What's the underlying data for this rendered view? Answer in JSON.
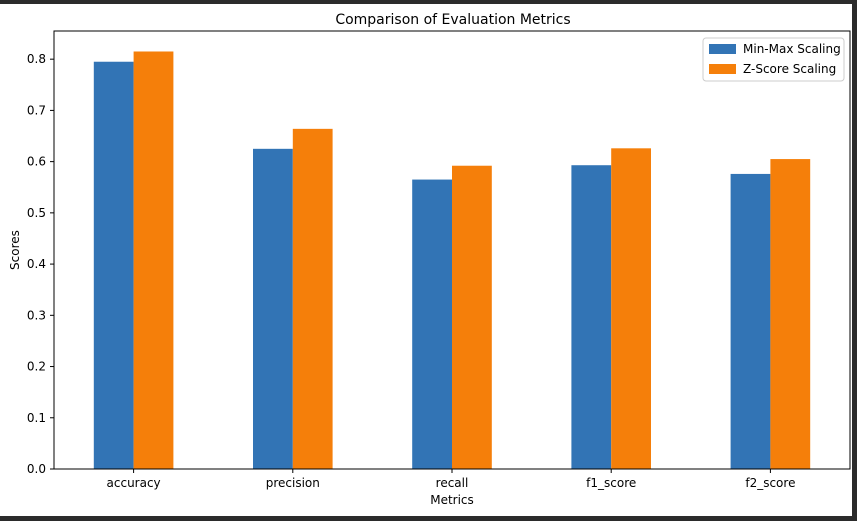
{
  "chart_data": {
    "type": "bar",
    "title": "Comparison of Evaluation Metrics",
    "xlabel": "Metrics",
    "ylabel": "Scores",
    "categories": [
      "accuracy",
      "precision",
      "recall",
      "f1_score",
      "f2_score"
    ],
    "series": [
      {
        "name": "Min-Max Scaling",
        "color": "#3274b5",
        "values": [
          0.795,
          0.625,
          0.565,
          0.593,
          0.576
        ]
      },
      {
        "name": "Z-Score Scaling",
        "color": "#f57f0a",
        "values": [
          0.815,
          0.664,
          0.592,
          0.626,
          0.605
        ]
      }
    ],
    "ylim": [
      0,
      0.855
    ],
    "yticks": [
      "0.0",
      "0.1",
      "0.2",
      "0.3",
      "0.4",
      "0.5",
      "0.6",
      "0.7",
      "0.8"
    ],
    "grid": false,
    "legend_position": "top-right"
  }
}
